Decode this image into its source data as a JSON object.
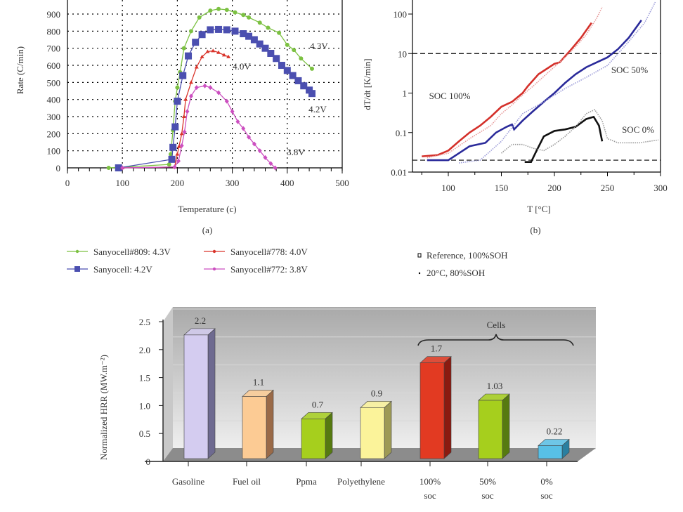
{
  "chart_data": [
    {
      "type": "line",
      "panel_label": "(a)",
      "xlabel": "Temperature (c)",
      "ylabel": "Rate (C/min)",
      "xlim": [
        0,
        500
      ],
      "ylim": [
        0,
        950
      ],
      "xticks": [
        "0",
        "100",
        "200",
        "300",
        "400",
        "500"
      ],
      "yticks": [
        "0",
        "100",
        "200",
        "300",
        "400",
        "500",
        "600",
        "700",
        "800",
        "900"
      ],
      "grid": true,
      "legend_position": "bottom",
      "series": [
        {
          "name": "Sanyocell#809: 4.3V",
          "label": "4.3V",
          "color": "#7cc142",
          "marker": "circle",
          "x": [
            75,
            90,
            185,
            188,
            192,
            196,
            200,
            205,
            212,
            225,
            240,
            260,
            275,
            290,
            305,
            320,
            330,
            350,
            365,
            385,
            400,
            412,
            425,
            445
          ],
          "y": [
            0,
            2,
            20,
            80,
            220,
            390,
            470,
            560,
            700,
            800,
            880,
            920,
            930,
            925,
            910,
            895,
            880,
            850,
            820,
            790,
            720,
            690,
            640,
            580
          ]
        },
        {
          "name": "Sanyocell: 4.2V",
          "label": "4.2V",
          "color": "#4b4fb0",
          "marker": "square",
          "x": [
            93,
            190,
            192,
            196,
            200,
            210,
            220,
            233,
            245,
            260,
            275,
            290,
            305,
            320,
            330,
            340,
            350,
            360,
            370,
            380,
            390,
            400,
            410,
            420,
            430,
            440,
            445
          ],
          "y": [
            0,
            50,
            120,
            240,
            390,
            540,
            655,
            735,
            780,
            808,
            810,
            808,
            800,
            785,
            770,
            750,
            725,
            700,
            670,
            640,
            600,
            570,
            540,
            510,
            480,
            455,
            435
          ]
        },
        {
          "name": "Sanyocell#778: 4.0V",
          "label": "4.0V",
          "color": "#d9342b",
          "marker": "triangle",
          "x": [
            100,
            195,
            200,
            203,
            208,
            212,
            215,
            225,
            235,
            245,
            255,
            265,
            275,
            285,
            293
          ],
          "y": [
            0,
            5,
            80,
            125,
            200,
            300,
            400,
            500,
            590,
            650,
            680,
            685,
            675,
            660,
            650
          ]
        },
        {
          "name": "Sanyocell#772: 3.8V",
          "label": "3.8V",
          "color": "#cc4fc0",
          "marker": "diamond",
          "x": [
            100,
            195,
            202,
            208,
            213,
            218,
            225,
            235,
            250,
            260,
            275,
            290,
            300,
            310,
            320,
            330,
            340,
            350,
            360,
            370,
            378
          ],
          "y": [
            0,
            5,
            40,
            130,
            210,
            330,
            420,
            470,
            480,
            470,
            440,
            390,
            330,
            270,
            230,
            180,
            140,
            100,
            60,
            25,
            0
          ]
        }
      ]
    },
    {
      "type": "scatter",
      "panel_label": "(b)",
      "xlabel": "T [°C]",
      "ylabel": "dT/dt [K/min]",
      "xlim": [
        66,
        300
      ],
      "ylim": [
        0.01,
        200
      ],
      "yscale": "log",
      "xticks": [
        "100",
        "150",
        "200",
        "250",
        "300"
      ],
      "yticks": [
        "0.01",
        "0.1",
        "1",
        "10",
        "100"
      ],
      "reference_lines": [
        10,
        0.02
      ],
      "legend": [
        "Reference, 100%SOH",
        "20°C, 80%SOH"
      ],
      "legend_position": "bottom",
      "series": [
        {
          "name": "SOC 100%",
          "color": "#d4302a",
          "condition": "Reference, 100%SOH",
          "x": [
            75,
            90,
            100,
            110,
            120,
            130,
            140,
            150,
            160,
            170,
            175,
            185,
            200,
            205,
            215,
            225,
            235
          ],
          "y": [
            0.025,
            0.027,
            0.035,
            0.06,
            0.1,
            0.15,
            0.25,
            0.45,
            0.6,
            1.0,
            1.5,
            3,
            5.5,
            6,
            12,
            25,
            60
          ]
        },
        {
          "name": "SOC 100%",
          "color": "#e79a9a",
          "condition": "20°C, 80%SOH",
          "x": [
            80,
            100,
            120,
            140,
            150,
            160,
            170,
            180,
            195,
            210,
            220,
            230,
            240,
            245
          ],
          "y": [
            0.023,
            0.03,
            0.07,
            0.15,
            0.3,
            0.5,
            0.9,
            1.5,
            3.5,
            8,
            15,
            30,
            80,
            150
          ]
        },
        {
          "name": "SOC 50%",
          "color": "#2a2a9a",
          "condition": "Reference, 100%SOH",
          "x": [
            80,
            100,
            110,
            120,
            135,
            145,
            155,
            160,
            162,
            170,
            180,
            190,
            200,
            210,
            220,
            230,
            240,
            250,
            260,
            270,
            282
          ],
          "y": [
            0.02,
            0.02,
            0.03,
            0.045,
            0.055,
            0.1,
            0.14,
            0.16,
            0.12,
            0.2,
            0.35,
            0.6,
            1,
            1.8,
            3,
            4.5,
            6,
            8,
            13,
            25,
            70
          ]
        },
        {
          "name": "SOC 50%",
          "color": "#9a9ad8",
          "condition": "20°C, 80%SOH",
          "x": [
            110,
            130,
            150,
            170,
            190,
            210,
            230,
            250,
            270,
            285,
            295
          ],
          "y": [
            0.017,
            0.02,
            0.06,
            0.3,
            0.6,
            1.3,
            2.5,
            5,
            20,
            60,
            200
          ]
        },
        {
          "name": "SOC 0%",
          "color": "#111111",
          "condition": "Reference, 100%SOH",
          "x": [
            172,
            178,
            182,
            190,
            200,
            210,
            220,
            230,
            237,
            242,
            245
          ],
          "y": [
            0.018,
            0.018,
            0.03,
            0.08,
            0.11,
            0.12,
            0.14,
            0.22,
            0.25,
            0.15,
            0.06
          ]
        },
        {
          "name": "SOC 0%",
          "color": "#999999",
          "condition": "20°C, 80%SOH",
          "x": [
            150,
            160,
            170,
            180,
            190,
            200,
            210,
            220,
            230,
            238,
            245,
            250,
            260,
            280,
            298
          ],
          "y": [
            0.03,
            0.05,
            0.05,
            0.04,
            0.035,
            0.05,
            0.08,
            0.14,
            0.3,
            0.38,
            0.2,
            0.07,
            0.055,
            0.055,
            0.065
          ]
        }
      ]
    },
    {
      "type": "bar",
      "ylabel": "Normalized HRR (MW.m⁻²)",
      "ylim": [
        0,
        2.5
      ],
      "yticks": [
        "0",
        "0.5",
        "1.0",
        "1.5",
        "2.0",
        "2.5"
      ],
      "group_annotation": "Cells",
      "categories": [
        [
          "Gasoline"
        ],
        [
          "Fuel oil"
        ],
        [
          "Ppma"
        ],
        [
          "Polyethylene"
        ],
        [
          "100%",
          "soc"
        ],
        [
          "50%",
          "soc"
        ],
        [
          "0%",
          "soc"
        ]
      ],
      "values": [
        2.2,
        1.1,
        0.7,
        0.9,
        1.7,
        1.03,
        0.22
      ],
      "data_labels": [
        "2.2",
        "1.1",
        "0.7",
        "0.9",
        "1.7",
        "1.03",
        "0.22"
      ],
      "colors": [
        "#d4ccf0",
        "#fccb94",
        "#a6cf1d",
        "#fbf39a",
        "#e23a22",
        "#a6cf1d",
        "#58c0e6"
      ],
      "side_colors": [
        "#6e6a90",
        "#9a6a48",
        "#567a10",
        "#9e9a55",
        "#8a1a10",
        "#567a10",
        "#2a7fa0"
      ]
    }
  ]
}
